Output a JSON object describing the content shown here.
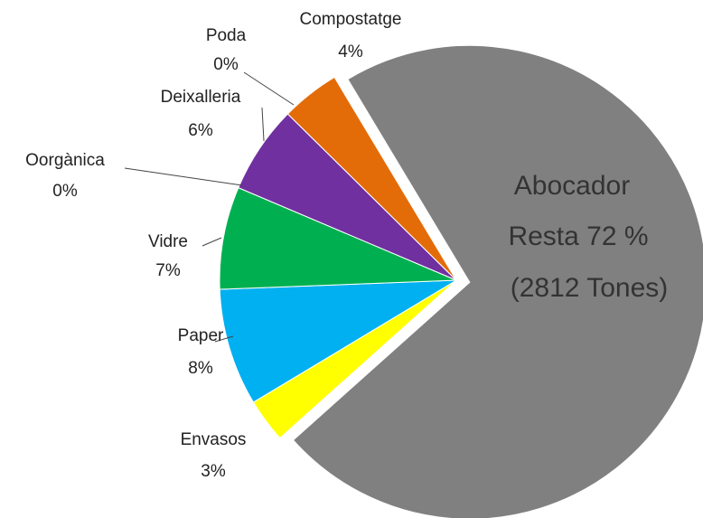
{
  "chart_data": {
    "type": "pie",
    "categories": [
      "Abocador",
      "Envasos",
      "Paper",
      "Vidre",
      "Oorgànica",
      "Deixalleria",
      "Poda",
      "Compostatge"
    ],
    "values": [
      72,
      3,
      8,
      7,
      0,
      6,
      0,
      4
    ],
    "value_labels": [
      "72 %",
      "3%",
      "8%",
      "7%",
      "0%",
      "6%",
      "0%",
      "4%"
    ],
    "colors": [
      "#808080",
      "#ffff00",
      "#00b0f0",
      "#00b050",
      "#c0504d",
      "#7030a0",
      "#9bbb59",
      "#e36c09"
    ],
    "annotations": [
      "Resta",
      "(2812 Tones)"
    ]
  }
}
